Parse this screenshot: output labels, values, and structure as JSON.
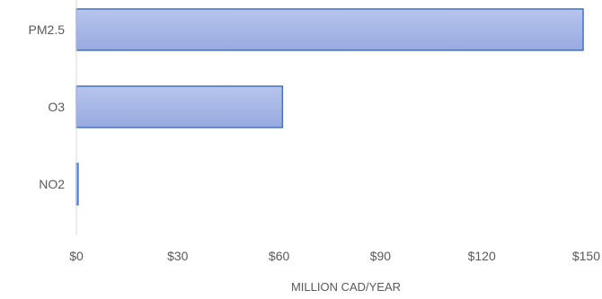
{
  "chart_data": {
    "type": "bar",
    "orientation": "horizontal",
    "categories": [
      "PM2.5",
      "O3",
      "NO2"
    ],
    "values": [
      150,
      61,
      0.5
    ],
    "xlabel": "MILLION CAD/YEAR",
    "ylabel": "",
    "xlim": [
      0,
      150
    ],
    "x_ticks": [
      "$0",
      "$30",
      "$60",
      "$90",
      "$120",
      "$150"
    ],
    "grid": false,
    "bar_color": "#a9b9e6",
    "bar_edge_color": "#4472c4",
    "axis_color": "#d9d9d9",
    "text_color": "#595959"
  }
}
